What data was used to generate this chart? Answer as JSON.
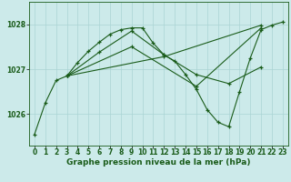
{
  "background_color": "#cceaea",
  "grid_color": "#aad4d4",
  "line_color": "#1a5c1a",
  "marker_color": "#1a5c1a",
  "title": "Graphe pression niveau de la mer (hPa)",
  "title_fontsize": 6.5,
  "tick_fontsize": 5.5,
  "ylim": [
    1025.3,
    1028.5
  ],
  "xlim": [
    -0.5,
    23.5
  ],
  "yticks": [
    1026,
    1027,
    1028
  ],
  "xticks": [
    0,
    1,
    2,
    3,
    4,
    5,
    6,
    7,
    8,
    9,
    10,
    11,
    12,
    13,
    14,
    15,
    16,
    17,
    18,
    19,
    20,
    21,
    22,
    23
  ],
  "lines": [
    {
      "x": [
        0,
        1,
        2,
        3,
        4,
        5,
        6,
        7,
        8,
        9,
        10,
        11,
        12,
        13,
        14,
        15,
        16,
        17,
        18,
        19,
        20,
        21,
        22,
        23
      ],
      "y": [
        1025.55,
        1026.25,
        1026.75,
        1026.85,
        1027.15,
        1027.4,
        1027.6,
        1027.78,
        1027.88,
        1027.92,
        1027.92,
        1027.58,
        1027.32,
        1027.18,
        1026.88,
        1026.55,
        1026.1,
        1025.82,
        1025.72,
        1026.5,
        1027.25,
        1027.88,
        1027.98,
        1028.05
      ]
    },
    {
      "x": [
        3,
        6,
        9,
        12,
        15,
        18,
        21
      ],
      "y": [
        1026.85,
        1027.38,
        1027.85,
        1027.32,
        1026.88,
        1026.68,
        1027.05
      ]
    },
    {
      "x": [
        3,
        9,
        15,
        21
      ],
      "y": [
        1026.85,
        1027.5,
        1026.62,
        1027.92
      ]
    },
    {
      "x": [
        3,
        12,
        21
      ],
      "y": [
        1026.85,
        1027.28,
        1027.98
      ]
    }
  ]
}
